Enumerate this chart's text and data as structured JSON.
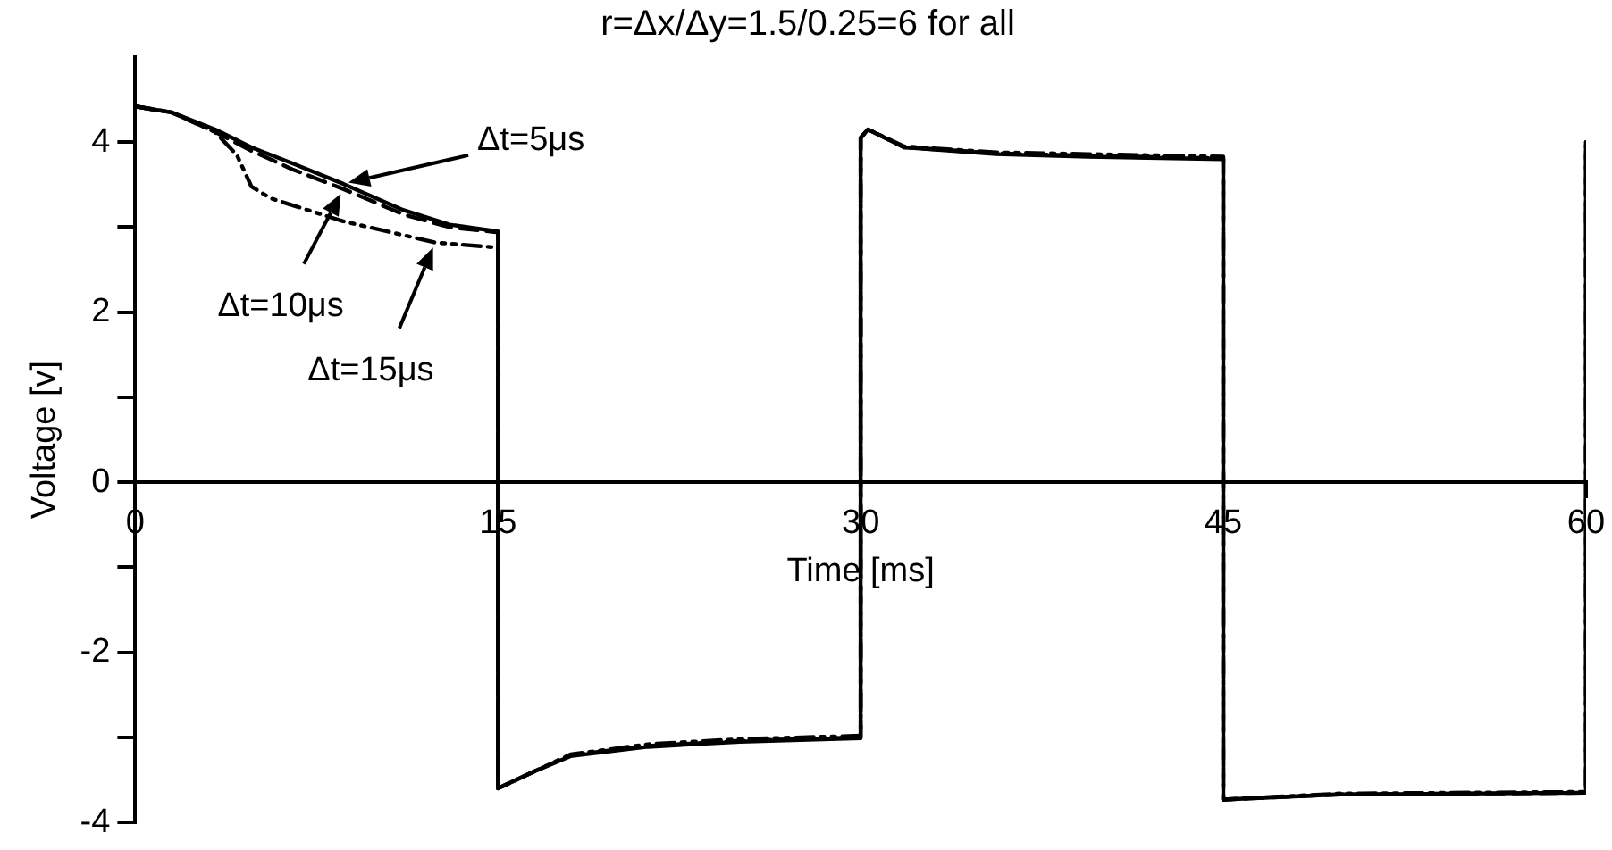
{
  "chart_data": {
    "type": "line",
    "title": "r=Δx/Δy=1.5/0.25=6 for all",
    "xlabel": "Time [ms]",
    "ylabel": "Voltage [v]",
    "xlim": [
      0,
      60
    ],
    "xticks": [
      0,
      15,
      30,
      45,
      60
    ],
    "ylim": [
      -4,
      5
    ],
    "yticks": [
      -4,
      {
        "value": -3,
        "label": null
      },
      -2,
      {
        "value": -1,
        "label": null
      },
      0,
      {
        "value": 1,
        "label": null
      },
      2,
      {
        "value": 3,
        "label": null
      },
      4
    ],
    "grid": false,
    "legend": false,
    "marker": "none",
    "annotations": [
      "Δt=5μs",
      "Δt=10μs",
      "Δt=15μs"
    ],
    "series": [
      {
        "color": "#000000",
        "line_style": "solid",
        "x": [
          0,
          1.5,
          3.3,
          4.8,
          6.5,
          8.6,
          11.1,
          13,
          15,
          15,
          16.5,
          18,
          21.2,
          25,
          30,
          30,
          30.3,
          31.8,
          35.6,
          39.4,
          45,
          45,
          49.8,
          60,
          60
        ],
        "values": [
          4.42,
          4.35,
          4.15,
          3.94,
          3.75,
          3.51,
          3.2,
          3.03,
          2.95,
          -3.6,
          -3.4,
          -3.22,
          -3.11,
          -3.05,
          -3.01,
          4.05,
          4.15,
          3.94,
          3.86,
          3.83,
          3.8,
          -3.73,
          -3.67,
          -3.65,
          4.0
        ]
      },
      {
        "color": "#000000",
        "line_style": "dashed",
        "x": [
          0,
          1.5,
          3.3,
          4.8,
          6.5,
          8.6,
          11.1,
          13,
          15,
          15,
          16.5,
          18,
          21.2,
          25,
          30,
          30,
          30.3,
          31.8,
          35.6,
          39.4,
          45,
          45,
          49.8,
          60,
          60
        ],
        "values": [
          4.42,
          4.35,
          4.12,
          3.9,
          3.68,
          3.45,
          3.15,
          3.0,
          2.94,
          -3.6,
          -3.4,
          -3.21,
          -3.1,
          -3.04,
          -3.0,
          4.05,
          4.15,
          3.94,
          3.87,
          3.84,
          3.81,
          -3.73,
          -3.67,
          -3.65,
          4.0
        ]
      },
      {
        "color": "#000000",
        "line_style": "dotted",
        "x": [
          0,
          1.5,
          3.3,
          4.2,
          4.8,
          5.6,
          8.6,
          12.4,
          15,
          15,
          16.5,
          18,
          21.2,
          25,
          30,
          30,
          30.3,
          31.8,
          35.6,
          39.4,
          45,
          45,
          49.8,
          60,
          60
        ],
        "values": [
          4.42,
          4.35,
          4.12,
          3.85,
          3.48,
          3.34,
          3.07,
          2.82,
          2.76,
          -3.6,
          -3.4,
          -3.2,
          -3.08,
          -3.02,
          -2.98,
          4.05,
          4.15,
          3.95,
          3.88,
          3.86,
          3.83,
          -3.73,
          -3.66,
          -3.64,
          4.0
        ]
      }
    ]
  }
}
